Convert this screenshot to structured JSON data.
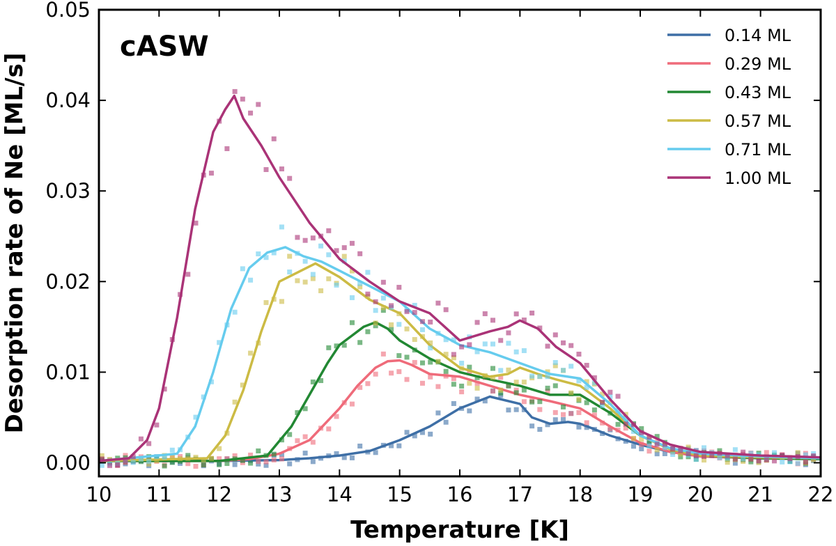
{
  "chart_data": {
    "type": "line",
    "panel_label": "cASW",
    "xlabel": "Temperature [K]",
    "ylabel": "Desorption rate of Ne [ML/s]",
    "xlim": [
      10,
      22
    ],
    "ylim": [
      -0.0015,
      0.05
    ],
    "xticks": [
      10,
      11,
      12,
      13,
      14,
      15,
      16,
      17,
      18,
      19,
      20,
      21,
      22
    ],
    "xtick_labels": [
      "10",
      "11",
      "12",
      "13",
      "14",
      "15",
      "16",
      "17",
      "18",
      "19",
      "20",
      "21",
      "22"
    ],
    "yticks": [
      0.0,
      0.01,
      0.02,
      0.03,
      0.04,
      0.05
    ],
    "ytick_labels": [
      "0.00",
      "0.01",
      "0.02",
      "0.03",
      "0.04",
      "0.05"
    ],
    "legend_position": "top-right",
    "series": [
      {
        "name": "0.14 ML",
        "color": "#3e6fa6",
        "x": [
          10,
          11,
          12,
          13,
          13.5,
          14,
          14.5,
          15,
          15.5,
          16,
          16.5,
          17,
          17.2,
          17.5,
          17.8,
          18,
          18.2,
          18.5,
          19,
          19.5,
          20,
          21,
          22
        ],
        "y": [
          0.0002,
          0.0002,
          0.0002,
          0.0003,
          0.0005,
          0.0008,
          0.0013,
          0.0025,
          0.004,
          0.006,
          0.0073,
          0.0065,
          0.005,
          0.0043,
          0.0045,
          0.0043,
          0.0038,
          0.003,
          0.002,
          0.0012,
          0.0007,
          0.0005,
          0.0004
        ]
      },
      {
        "name": "0.29 ML",
        "color": "#ef6b7a",
        "x": [
          10,
          12,
          12.5,
          13,
          13.5,
          14,
          14.3,
          14.6,
          14.8,
          15,
          15.2,
          15.5,
          16,
          16.5,
          17,
          17.5,
          18,
          18.5,
          19,
          19.5,
          20,
          21,
          22
        ],
        "y": [
          0.0002,
          0.0002,
          0.0004,
          0.001,
          0.0025,
          0.006,
          0.0085,
          0.0105,
          0.0112,
          0.0113,
          0.0108,
          0.0098,
          0.0095,
          0.0085,
          0.0075,
          0.0068,
          0.006,
          0.004,
          0.0022,
          0.0012,
          0.0007,
          0.0005,
          0.0004
        ]
      },
      {
        "name": "0.43 ML",
        "color": "#228833",
        "x": [
          10,
          12,
          12.8,
          13.2,
          13.5,
          13.8,
          14,
          14.4,
          14.6,
          14.8,
          15,
          15.5,
          16,
          16.5,
          17,
          17.5,
          18,
          18.5,
          19,
          19.5,
          20,
          21,
          22
        ],
        "y": [
          0.0002,
          0.0002,
          0.0008,
          0.004,
          0.0075,
          0.011,
          0.013,
          0.015,
          0.0155,
          0.0148,
          0.0135,
          0.0115,
          0.01,
          0.0092,
          0.0085,
          0.0075,
          0.0075,
          0.0055,
          0.003,
          0.0015,
          0.0008,
          0.0005,
          0.0004
        ]
      },
      {
        "name": "0.57 ML",
        "color": "#ccbb44",
        "x": [
          10,
          11.8,
          12.1,
          12.4,
          12.7,
          13,
          13.3,
          13.6,
          14,
          14.5,
          15,
          15.5,
          16,
          16.5,
          16.8,
          17,
          17.3,
          17.6,
          18,
          18.5,
          19,
          19.5,
          20,
          21,
          22
        ],
        "y": [
          0.0002,
          0.0005,
          0.003,
          0.008,
          0.0145,
          0.02,
          0.021,
          0.022,
          0.0205,
          0.018,
          0.0165,
          0.013,
          0.0105,
          0.0095,
          0.0098,
          0.0105,
          0.0098,
          0.0092,
          0.0085,
          0.006,
          0.003,
          0.0015,
          0.0008,
          0.0006,
          0.0005
        ]
      },
      {
        "name": "0.71 ML",
        "color": "#66ccee",
        "x": [
          10,
          11.3,
          11.6,
          11.9,
          12.2,
          12.5,
          12.8,
          13.1,
          13.4,
          13.7,
          14,
          14.5,
          15,
          15.5,
          16,
          16.5,
          17,
          17.5,
          18,
          18.5,
          19,
          19.5,
          20,
          21,
          22
        ],
        "y": [
          0.0002,
          0.001,
          0.004,
          0.01,
          0.017,
          0.0215,
          0.0232,
          0.0238,
          0.0228,
          0.0222,
          0.0212,
          0.0195,
          0.0178,
          0.0148,
          0.013,
          0.0122,
          0.011,
          0.0098,
          0.0093,
          0.0065,
          0.003,
          0.0016,
          0.001,
          0.0007,
          0.0005
        ]
      },
      {
        "name": "1.00 ML",
        "color": "#aa3377",
        "x": [
          10,
          10.5,
          10.8,
          11,
          11.3,
          11.6,
          11.9,
          12.1,
          12.25,
          12.4,
          12.7,
          13,
          13.5,
          14,
          14.5,
          15,
          15.5,
          16,
          16.5,
          16.8,
          17,
          17.3,
          17.6,
          18,
          18.5,
          19,
          19.5,
          20,
          21,
          22
        ],
        "y": [
          0.0002,
          0.0005,
          0.0025,
          0.006,
          0.016,
          0.028,
          0.0365,
          0.039,
          0.0405,
          0.038,
          0.035,
          0.0315,
          0.0265,
          0.0225,
          0.02,
          0.0178,
          0.0165,
          0.0135,
          0.0145,
          0.015,
          0.0157,
          0.0148,
          0.0128,
          0.011,
          0.007,
          0.0035,
          0.002,
          0.0012,
          0.0008,
          0.0006
        ]
      }
    ]
  }
}
